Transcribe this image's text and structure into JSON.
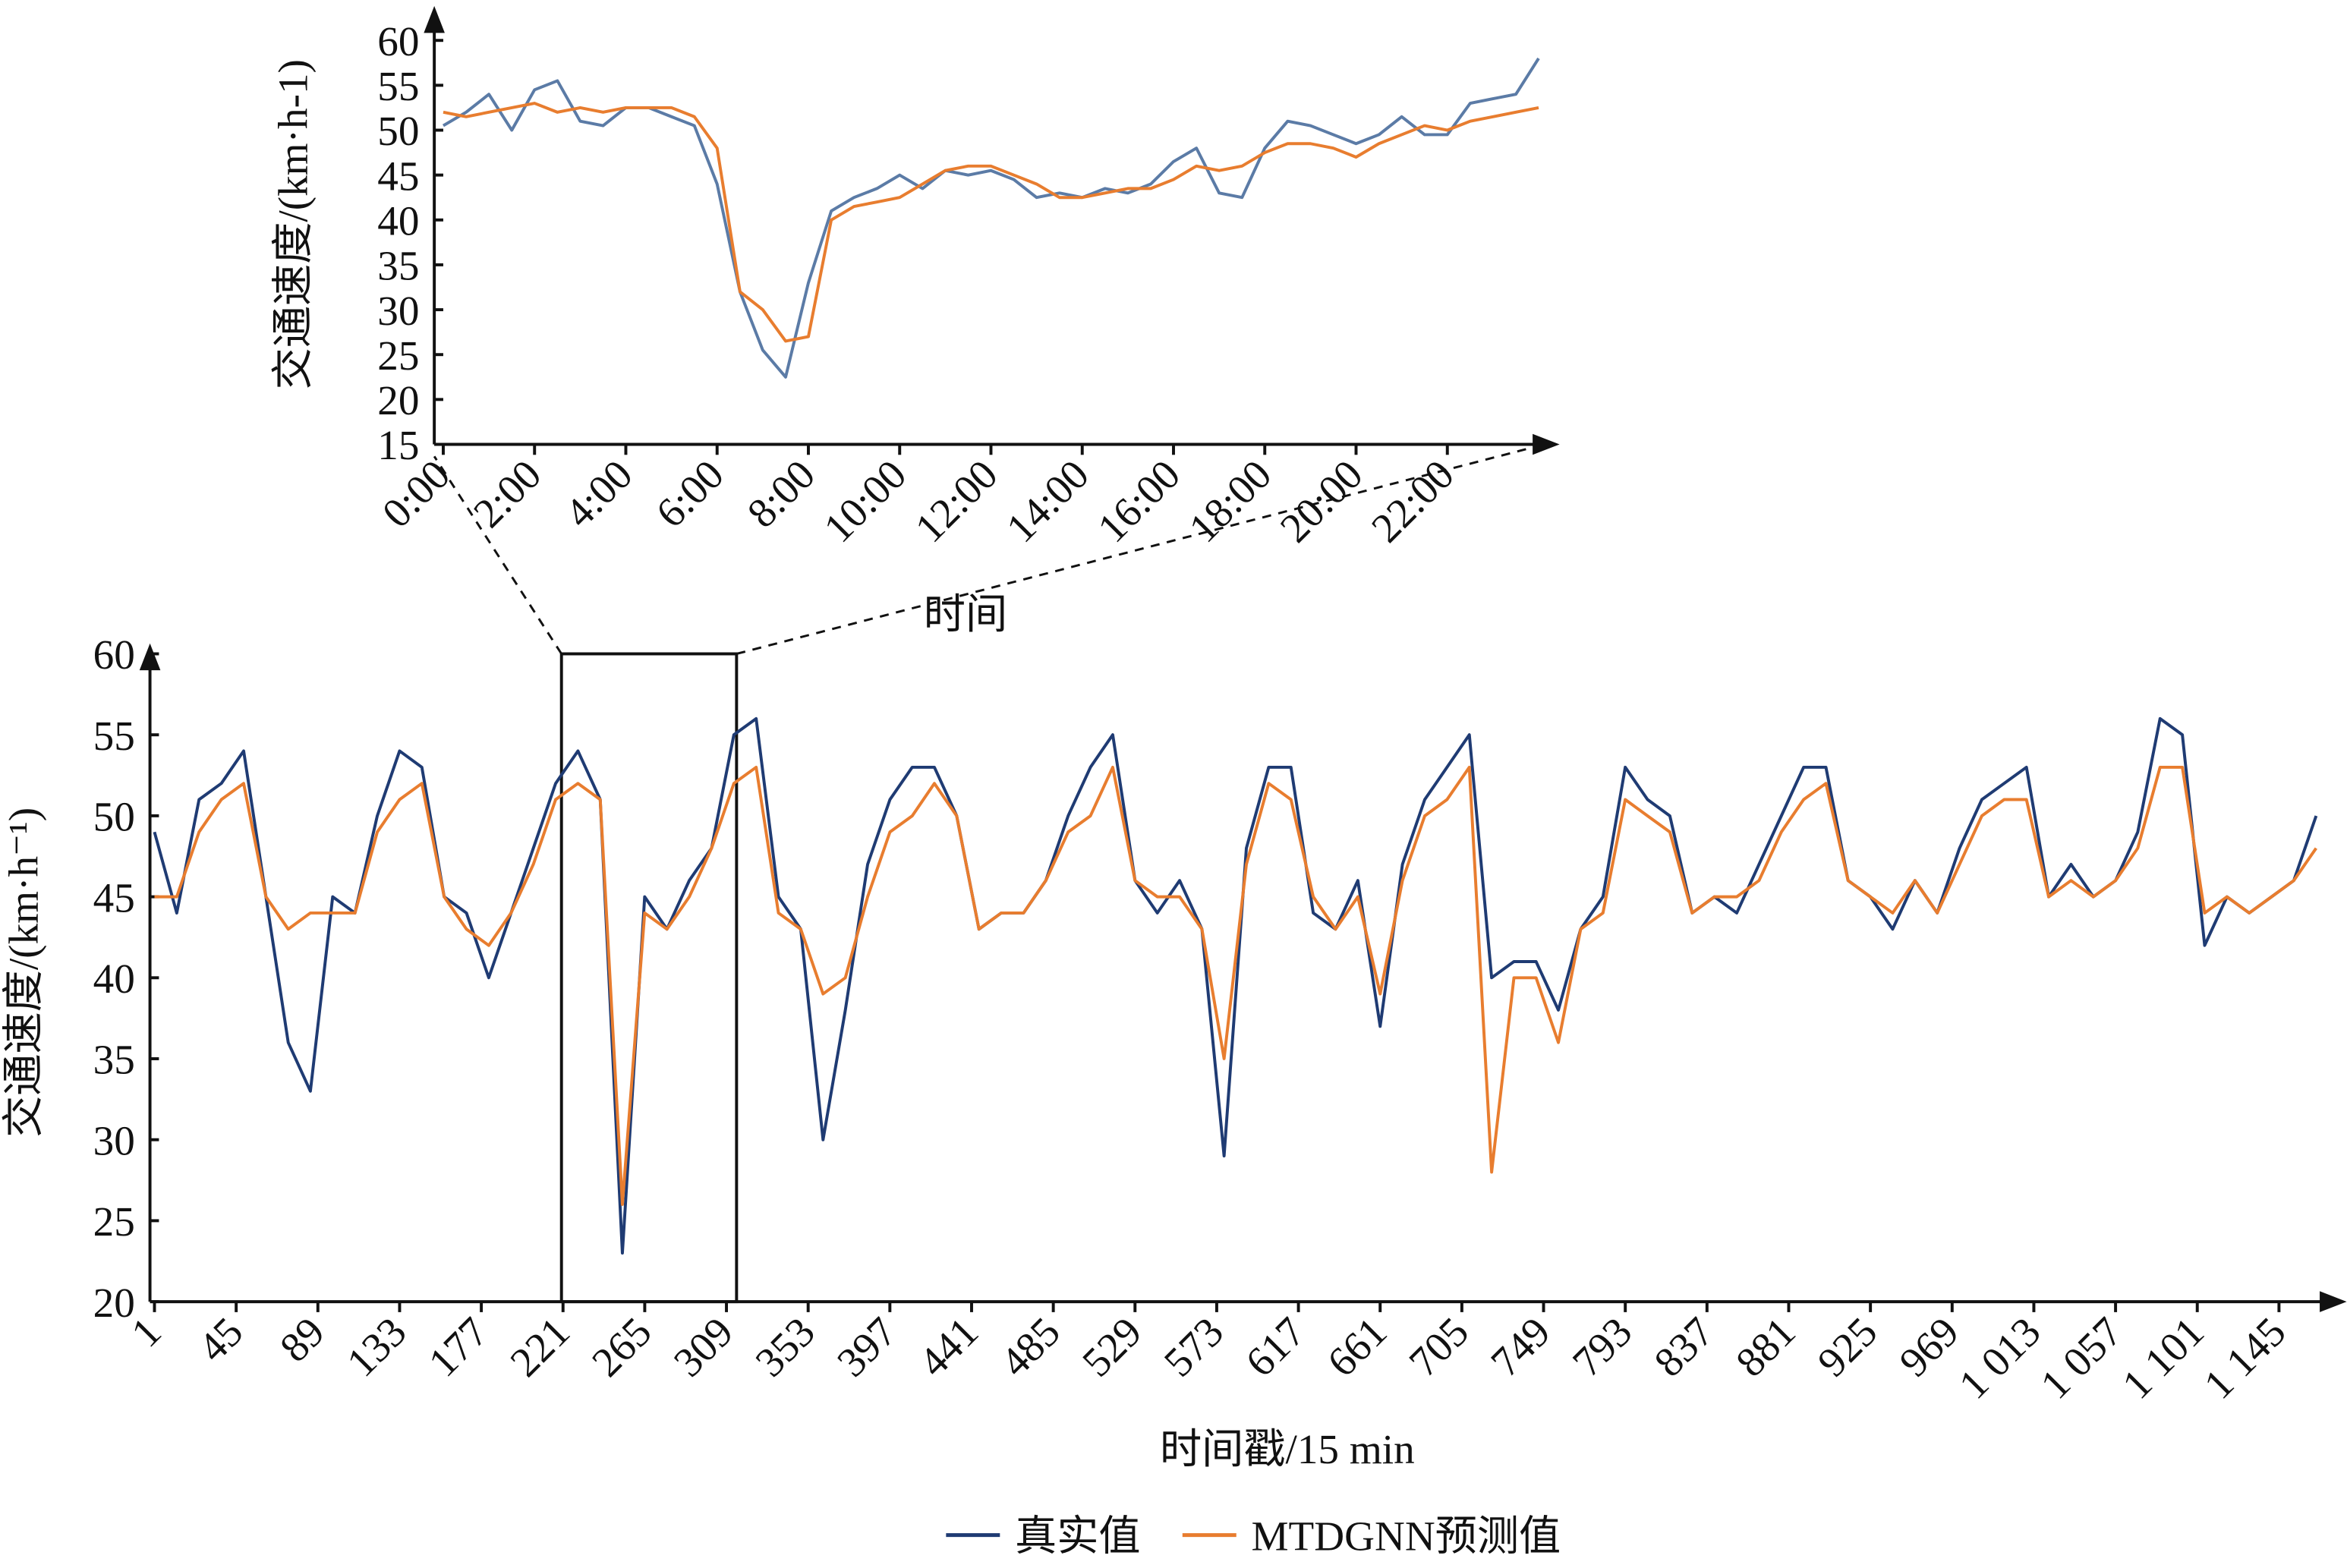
{
  "chart_data": [
    {
      "type": "line",
      "ylabel": "交通速度/(km·h-1)",
      "xlabel": "时间",
      "x": [
        0,
        0.5,
        1,
        1.5,
        2,
        2.5,
        3,
        3.5,
        4,
        4.5,
        5,
        5.5,
        6,
        6.5,
        7,
        7.5,
        8,
        8.5,
        9,
        9.5,
        10,
        10.5,
        11,
        11.5,
        12,
        12.5,
        13,
        13.5,
        14,
        14.5,
        15,
        15.5,
        16,
        16.5,
        17,
        17.5,
        18,
        18.5,
        19,
        19.5,
        20,
        20.5,
        21,
        21.5,
        22,
        22.5,
        23,
        23.5,
        24
      ],
      "series": [
        {
          "color": "#5b7ba6",
          "values": [
            50.5,
            52,
            54,
            50,
            54.5,
            55.5,
            51,
            50.5,
            52.5,
            52.5,
            51.5,
            50.5,
            44,
            32,
            25.5,
            22.5,
            33,
            41,
            42.5,
            43.5,
            45,
            43.5,
            45.5,
            45,
            45.5,
            44.5,
            42.5,
            43,
            42.5,
            43.5,
            43,
            44,
            46.5,
            48,
            43,
            42.5,
            48,
            51,
            50.5,
            49.5,
            48.5,
            49.5,
            51.5,
            49.5,
            49.5,
            53,
            53.5,
            54,
            58
          ]
        },
        {
          "color": "#e87d2f",
          "values": [
            52,
            51.5,
            52,
            52.5,
            53,
            52,
            52.5,
            52,
            52.5,
            52.5,
            52.5,
            51.5,
            48,
            32,
            30,
            26.5,
            27,
            40,
            41.5,
            42,
            42.5,
            44,
            45.5,
            46,
            46,
            45,
            44,
            42.5,
            42.5,
            43,
            43.5,
            43.5,
            44.5,
            46,
            45.5,
            46,
            47.5,
            48.5,
            48.5,
            48,
            47,
            48.5,
            49.5,
            50.5,
            50,
            51,
            51.5,
            52,
            52.5
          ]
        }
      ],
      "xlim": [
        0,
        24
      ],
      "xticks": [
        {
          "value": 0,
          "label": "0:00"
        },
        {
          "value": 2,
          "label": "2:00"
        },
        {
          "value": 4,
          "label": "4:00"
        },
        {
          "value": 6,
          "label": "6:00"
        },
        {
          "value": 8,
          "label": "8:00"
        },
        {
          "value": 10,
          "label": "10:00"
        },
        {
          "value": 12,
          "label": "12:00"
        },
        {
          "value": 14,
          "label": "14:00"
        },
        {
          "value": 16,
          "label": "16:00"
        },
        {
          "value": 18,
          "label": "18:00"
        },
        {
          "value": 20,
          "label": "20:00"
        },
        {
          "value": 22,
          "label": "22:00"
        }
      ],
      "ylim": [
        15,
        60
      ],
      "yticks": [
        15,
        20,
        25,
        30,
        35,
        40,
        45,
        50,
        55,
        60
      ]
    },
    {
      "type": "line",
      "ylabel": "交通速度/(km·h⁻¹)",
      "xlabel": "时间戳/15 min",
      "x": [
        1,
        13,
        25,
        37,
        49,
        61,
        73,
        85,
        97,
        109,
        121,
        133,
        145,
        157,
        169,
        181,
        193,
        205,
        217,
        229,
        241,
        253,
        265,
        277,
        289,
        301,
        313,
        325,
        337,
        349,
        361,
        373,
        385,
        397,
        409,
        421,
        433,
        445,
        457,
        469,
        481,
        493,
        505,
        517,
        529,
        541,
        553,
        565,
        577,
        589,
        601,
        613,
        625,
        637,
        649,
        661,
        673,
        685,
        697,
        709,
        721,
        733,
        745,
        757,
        769,
        781,
        793,
        805,
        817,
        829,
        841,
        853,
        865,
        877,
        889,
        901,
        913,
        925,
        937,
        949,
        961,
        973,
        985,
        997,
        1009,
        1021,
        1033,
        1045,
        1057,
        1069,
        1081,
        1093,
        1105,
        1117,
        1129,
        1141,
        1153,
        1165
      ],
      "series": [
        {
          "name": "真实值",
          "color": "#1f3b73",
          "values": [
            49,
            44,
            51,
            52,
            54,
            45,
            36,
            33,
            45,
            44,
            50,
            54,
            53,
            45,
            44,
            40,
            44,
            48,
            52,
            54,
            51,
            23,
            45,
            43,
            46,
            48,
            55,
            56,
            45,
            43,
            30,
            38,
            47,
            51,
            53,
            53,
            50,
            43,
            44,
            44,
            46,
            50,
            53,
            55,
            46,
            44,
            46,
            43,
            29,
            48,
            53,
            53,
            44,
            43,
            46,
            37,
            47,
            51,
            53,
            55,
            40,
            41,
            41,
            38,
            43,
            45,
            53,
            51,
            50,
            44,
            45,
            44,
            47,
            50,
            53,
            53,
            46,
            45,
            43,
            46,
            44,
            48,
            51,
            52,
            53,
            45,
            47,
            45,
            46,
            49,
            56,
            55,
            42,
            45,
            44,
            45,
            46,
            50
          ]
        },
        {
          "name": "MTDGNN预测值",
          "color": "#e87d2f",
          "values": [
            45,
            45,
            49,
            51,
            52,
            45,
            43,
            44,
            44,
            44,
            49,
            51,
            52,
            45,
            43,
            42,
            44,
            47,
            51,
            52,
            51,
            26,
            44,
            43,
            45,
            48,
            52,
            53,
            44,
            43,
            39,
            40,
            45,
            49,
            50,
            52,
            50,
            43,
            44,
            44,
            46,
            49,
            50,
            53,
            46,
            45,
            45,
            43,
            35,
            47,
            52,
            51,
            45,
            43,
            45,
            39,
            46,
            50,
            51,
            53,
            28,
            40,
            40,
            36,
            43,
            44,
            51,
            50,
            49,
            44,
            45,
            45,
            46,
            49,
            51,
            52,
            46,
            45,
            44,
            46,
            44,
            47,
            50,
            51,
            51,
            45,
            46,
            45,
            46,
            48,
            53,
            53,
            44,
            45,
            44,
            45,
            46,
            48
          ]
        }
      ],
      "xlim": [
        1,
        1175
      ],
      "xticks": [
        1,
        45,
        89,
        133,
        177,
        221,
        265,
        309,
        353,
        397,
        441,
        485,
        529,
        573,
        617,
        661,
        705,
        749,
        793,
        837,
        881,
        925,
        969,
        {
          "value": 1013,
          "label": "1 013"
        },
        {
          "value": 1057,
          "label": "1 057"
        },
        {
          "value": 1101,
          "label": "1 101"
        },
        {
          "value": 1145,
          "label": "1 145"
        }
      ],
      "ylim": [
        20,
        60
      ],
      "yticks": [
        20,
        25,
        30,
        35,
        40,
        45,
        50,
        55,
        60
      ]
    }
  ]
}
